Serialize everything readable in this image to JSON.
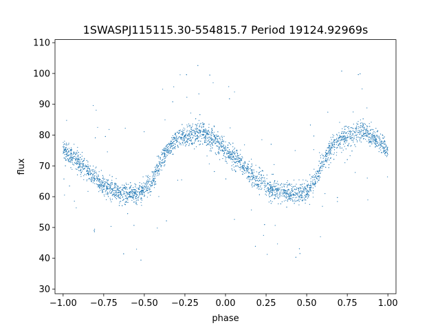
{
  "chart_data": {
    "type": "scatter",
    "title": "1SWASPJ115115.30-554815.7 Period 19124.92969s",
    "xlabel": "phase",
    "ylabel": "flux",
    "xlim": [
      -1.05,
      1.05
    ],
    "ylim": [
      28.5,
      111
    ],
    "x_ticks": [
      -1.0,
      -0.75,
      -0.5,
      -0.25,
      0.0,
      0.25,
      0.5,
      0.75,
      1.0
    ],
    "x_tick_labels": [
      "−1.00",
      "−0.75",
      "−0.50",
      "−0.25",
      "0.00",
      "0.25",
      "0.50",
      "0.75",
      "1.00"
    ],
    "y_ticks": [
      30,
      40,
      50,
      60,
      70,
      80,
      90,
      100,
      110
    ],
    "y_tick_labels": [
      "30",
      "40",
      "50",
      "60",
      "70",
      "80",
      "90",
      "100",
      "110"
    ],
    "grid": false,
    "marker_color": "#1f77b4",
    "series": [
      {
        "x": [
          -1.0,
          -0.95,
          -0.9,
          -0.85,
          -0.8,
          -0.75,
          -0.7,
          -0.65,
          -0.6,
          -0.55,
          -0.5,
          -0.45,
          -0.4,
          -0.35,
          -0.3,
          -0.25,
          -0.2,
          -0.15,
          -0.1,
          -0.05,
          0.0,
          0.05,
          0.1,
          0.15,
          0.2,
          0.25,
          0.3,
          0.35,
          0.4,
          0.45,
          0.5,
          0.55,
          0.6,
          0.65,
          0.7,
          0.75,
          0.8,
          0.85,
          0.9,
          0.95,
          1.0
        ],
        "values": [
          75,
          73,
          71,
          68.5,
          66,
          64,
          62.5,
          61.5,
          61,
          61,
          62,
          65,
          71,
          76,
          78.5,
          79.5,
          80.5,
          81,
          79.5,
          77.5,
          75,
          72.5,
          70,
          67.5,
          65,
          63.5,
          62,
          61.5,
          61,
          61,
          62,
          65,
          71,
          76,
          78.5,
          79.5,
          80.5,
          81,
          79.5,
          77.5,
          75
        ]
      }
    ]
  }
}
